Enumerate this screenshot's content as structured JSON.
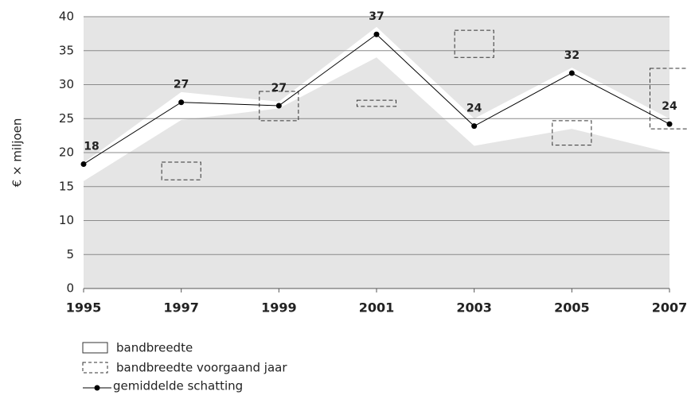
{
  "chart_data": {
    "type": "line",
    "ylabel": "€ × miljoen",
    "x": [
      1995,
      1997,
      1999,
      2001,
      2003,
      2005,
      2007
    ],
    "xlim": [
      1995,
      2007
    ],
    "xticks": [
      1995,
      1997,
      1999,
      2001,
      2003,
      2005,
      2007
    ],
    "ylim": [
      0,
      40
    ],
    "yticks": [
      0,
      5,
      10,
      15,
      20,
      25,
      30,
      35,
      40
    ],
    "grid": true,
    "background": "#e5e5e5",
    "band": {
      "name": "bandbreedte",
      "color": "#ffffff",
      "lower": [
        15.8,
        24.8,
        26.5,
        34.0,
        21.0,
        23.5,
        20.0
      ],
      "upper": [
        18.5,
        28.9,
        27.5,
        38.5,
        25.0,
        32.5,
        25.0
      ]
    },
    "previous_band": {
      "name": "bandbreedte voorgaand jaar",
      "x": [
        1997,
        1999,
        2001,
        2003,
        2005,
        2007
      ],
      "lower": [
        16.0,
        24.7,
        26.8,
        34.0,
        21.1,
        23.5
      ],
      "upper": [
        18.6,
        29.0,
        27.7,
        38.0,
        24.7,
        32.4
      ]
    },
    "series": [
      {
        "name": "gemiddelde schatting",
        "color": "#000000",
        "values": [
          18.3,
          27.4,
          26.9,
          37.4,
          23.9,
          31.7,
          24.2
        ],
        "value_labels": [
          "18",
          "27",
          "27",
          "37",
          "24",
          "32",
          "24"
        ]
      }
    ]
  }
}
